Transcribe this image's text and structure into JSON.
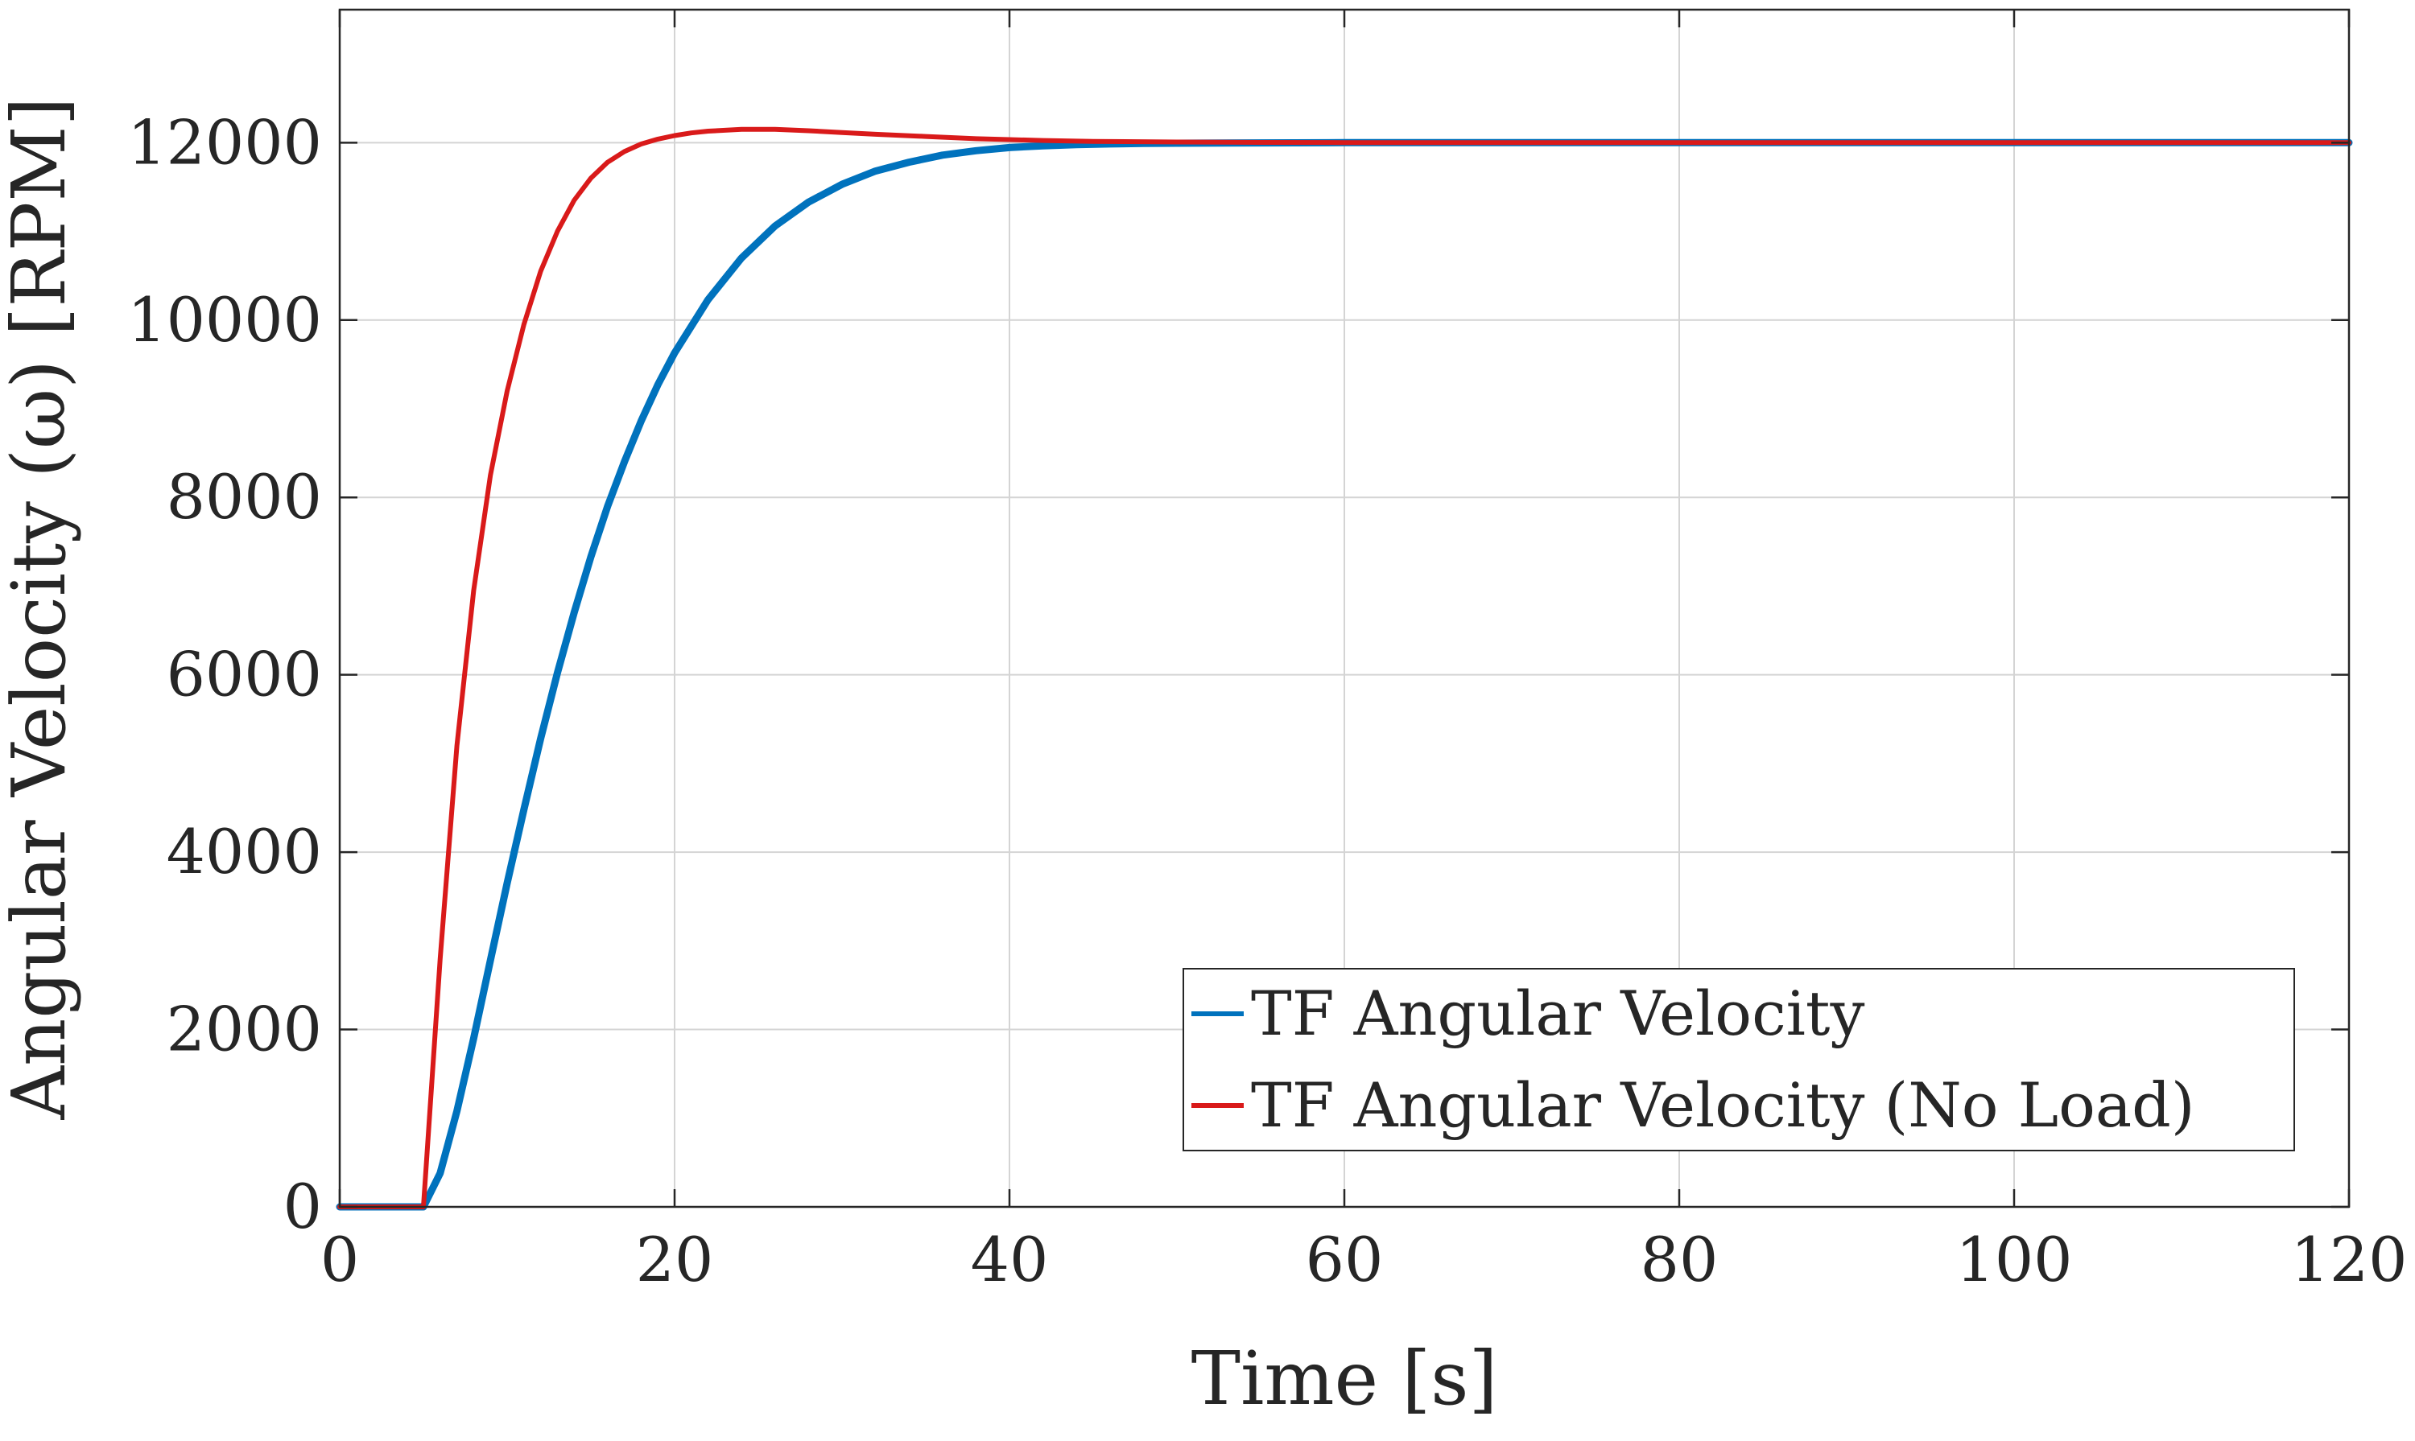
{
  "chart_data": {
    "type": "line",
    "xlabel": "Time [s]",
    "ylabel": "Angular Velocity (ω) [RPM]",
    "xlim": [
      0,
      120
    ],
    "ylim": [
      0,
      13500
    ],
    "xticks": [
      0,
      20,
      40,
      60,
      80,
      100,
      120
    ],
    "yticks": [
      0,
      2000,
      4000,
      6000,
      8000,
      10000,
      12000
    ],
    "grid": true,
    "legend_position": "bottom-right",
    "series": [
      {
        "name": "TF Angular Velocity",
        "color": "#0072BD",
        "x": [
          0,
          5,
          6,
          7,
          8,
          9,
          10,
          11,
          12,
          13,
          14,
          15,
          16,
          17,
          18,
          19,
          20,
          22,
          24,
          26,
          28,
          30,
          32,
          34,
          36,
          38,
          40,
          42,
          44,
          46,
          48,
          50,
          55,
          60,
          70,
          80,
          90,
          100,
          110,
          120
        ],
        "y": [
          0,
          0,
          380,
          1080,
          1900,
          2780,
          3650,
          4480,
          5280,
          6020,
          6700,
          7330,
          7900,
          8400,
          8860,
          9270,
          9630,
          10230,
          10700,
          11060,
          11330,
          11530,
          11680,
          11780,
          11860,
          11910,
          11945,
          11965,
          11978,
          11986,
          11991,
          11994,
          11998,
          12000,
          12000,
          12000,
          12000,
          12000,
          12000,
          12000
        ]
      },
      {
        "name": "TF Angular Velocity (No Load)",
        "color": "#D91A1A",
        "x": [
          0,
          5,
          6,
          7,
          8,
          9,
          10,
          11,
          12,
          13,
          14,
          15,
          16,
          17,
          18,
          19,
          20,
          21,
          22,
          24,
          26,
          28,
          30,
          32,
          35,
          38,
          40,
          42,
          45,
          50,
          55,
          60,
          70,
          80,
          90,
          100,
          110,
          120
        ],
        "y": [
          0,
          0,
          2800,
          5200,
          6950,
          8250,
          9200,
          9950,
          10550,
          11000,
          11350,
          11600,
          11780,
          11900,
          11985,
          12040,
          12080,
          12110,
          12130,
          12150,
          12150,
          12135,
          12115,
          12095,
          12070,
          12045,
          12035,
          12025,
          12015,
          12008,
          12003,
          12001,
          12000,
          12000,
          12000,
          12000,
          12000,
          12000
        ]
      }
    ]
  }
}
